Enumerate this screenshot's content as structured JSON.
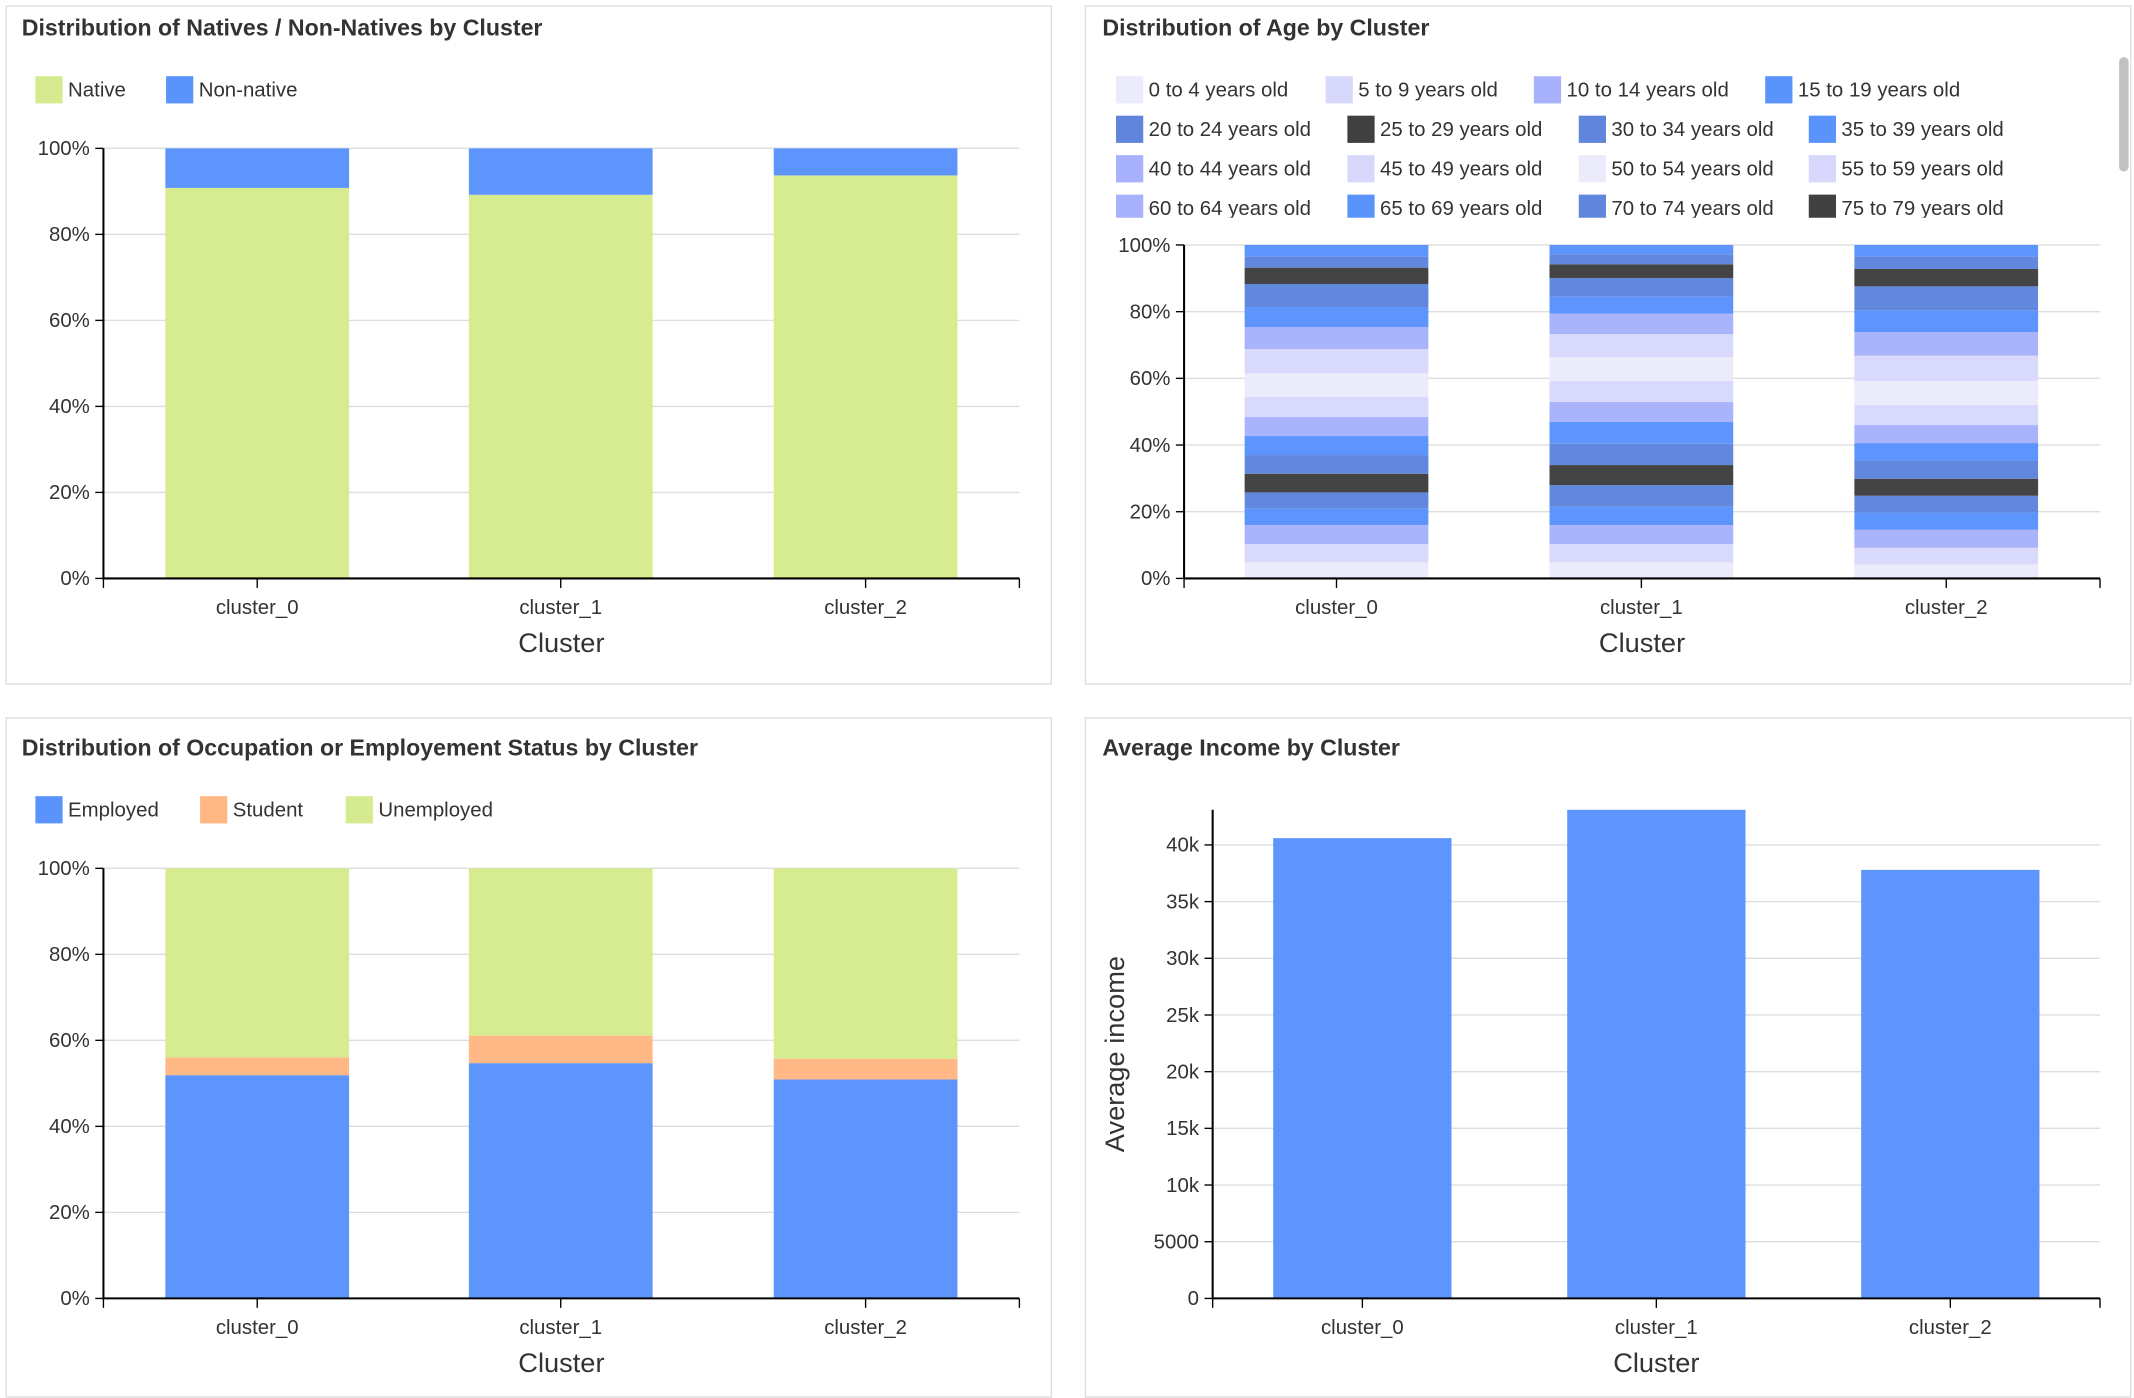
{
  "chart_data": [
    {
      "id": "natives",
      "type": "bar",
      "stacked": true,
      "title": "Distribution of Natives / Non-Natives by Cluster",
      "xlabel": "Cluster",
      "ylabel": "",
      "categories": [
        "cluster_0",
        "cluster_1",
        "cluster_2"
      ],
      "ylim": [
        0,
        100
      ],
      "yticks": [
        "0%",
        "20%",
        "40%",
        "60%",
        "80%",
        "100%"
      ],
      "grid": true,
      "legend_position": "top-left",
      "series": [
        {
          "name": "Native",
          "color": "#d6eb8f",
          "values": [
            90.8,
            89.2,
            93.7
          ]
        },
        {
          "name": "Non-native",
          "color": "#5b93fd",
          "values": [
            9.2,
            10.8,
            6.3
          ]
        }
      ]
    },
    {
      "id": "age",
      "type": "bar",
      "stacked": true,
      "title": "Distribution of Age by Cluster",
      "xlabel": "Cluster",
      "ylabel": "",
      "categories": [
        "cluster_0",
        "cluster_1",
        "cluster_2"
      ],
      "ylim": [
        0,
        100
      ],
      "yticks": [
        "0%",
        "20%",
        "40%",
        "60%",
        "80%",
        "100%"
      ],
      "grid": true,
      "legend_position": "top-left",
      "series": [
        {
          "name": "0 to 4 years old",
          "color": "#ebebfc",
          "values": [
            4.8,
            4.8,
            4.2
          ]
        },
        {
          "name": "5 to 9 years old",
          "color": "#d8d8fc",
          "values": [
            5.5,
            5.5,
            5.0
          ]
        },
        {
          "name": "10 to 14 years old",
          "color": "#a8b2fc",
          "values": [
            5.7,
            5.7,
            5.4
          ]
        },
        {
          "name": "15 to 19 years old",
          "color": "#5b93fd",
          "values": [
            5.0,
            5.5,
            5.2
          ]
        },
        {
          "name": "20 to 24 years old",
          "color": "#5f86dc",
          "values": [
            4.8,
            6.5,
            5.0
          ]
        },
        {
          "name": "25 to 29 years old",
          "color": "#404040",
          "values": [
            5.6,
            6.0,
            5.1
          ]
        },
        {
          "name": "30 to 34 years old",
          "color": "#5f86dc",
          "values": [
            5.6,
            6.4,
            5.5
          ]
        },
        {
          "name": "35 to 39 years old",
          "color": "#5b93fd",
          "values": [
            5.7,
            6.5,
            5.2
          ]
        },
        {
          "name": "40 to 44 years old",
          "color": "#a8b2fc",
          "values": [
            5.7,
            6.0,
            5.4
          ]
        },
        {
          "name": "45 to 49 years old",
          "color": "#d8d8fc",
          "values": [
            6.1,
            6.3,
            6.0
          ]
        },
        {
          "name": "50 to 54 years old",
          "color": "#ebebfc",
          "values": [
            7.1,
            7.2,
            7.2
          ]
        },
        {
          "name": "55 to 59 years old",
          "color": "#d8d8fc",
          "values": [
            7.2,
            6.9,
            7.6
          ]
        },
        {
          "name": "60 to 64 years old",
          "color": "#a8b2fc",
          "values": [
            6.6,
            6.1,
            7.1
          ]
        },
        {
          "name": "65 to 69 years old",
          "color": "#5b93fd",
          "values": [
            6.0,
            5.1,
            6.5
          ]
        },
        {
          "name": "70 to 74 years old",
          "color": "#5f86dc",
          "values": [
            6.9,
            5.6,
            7.2
          ]
        },
        {
          "name": "75 to 79 years old",
          "color": "#404040",
          "values": [
            4.9,
            4.1,
            5.2
          ]
        },
        {
          "color": "#5f86dc",
          "values": [
            3.3,
            3.0,
            3.7
          ]
        },
        {
          "color": "#5b93fd",
          "values": [
            3.5,
            2.8,
            3.5
          ]
        }
      ]
    },
    {
      "id": "occupation",
      "type": "bar",
      "stacked": true,
      "title": "Distribution of Occupation or Employement Status by Cluster",
      "xlabel": "Cluster",
      "ylabel": "",
      "categories": [
        "cluster_0",
        "cluster_1",
        "cluster_2"
      ],
      "ylim": [
        0,
        100
      ],
      "yticks": [
        "0%",
        "20%",
        "40%",
        "60%",
        "80%",
        "100%"
      ],
      "grid": true,
      "legend_position": "top-left",
      "series": [
        {
          "name": "Employed",
          "color": "#5b93fd",
          "values": [
            51.9,
            54.7,
            50.9
          ]
        },
        {
          "name": "Student",
          "color": "#ffb784",
          "values": [
            4.1,
            6.4,
            4.8
          ]
        },
        {
          "name": "Unemployed",
          "color": "#d6eb8f",
          "values": [
            44.0,
            38.9,
            44.3
          ]
        }
      ]
    },
    {
      "id": "income",
      "type": "bar",
      "stacked": false,
      "title": "Average Income by Cluster",
      "xlabel": "Cluster",
      "ylabel": "Average income",
      "categories": [
        "cluster_0",
        "cluster_1",
        "cluster_2"
      ],
      "ylim": [
        0,
        43100
      ],
      "yticks": [
        "0",
        "5000",
        "10k",
        "15k",
        "20k",
        "25k",
        "30k",
        "35k",
        "40k"
      ],
      "ytick_values": [
        0,
        5000,
        10000,
        15000,
        20000,
        25000,
        30000,
        35000,
        40000
      ],
      "grid": true,
      "series": [
        {
          "color": "#5b93fd",
          "values": [
            40600,
            43100,
            37800
          ]
        }
      ]
    }
  ]
}
